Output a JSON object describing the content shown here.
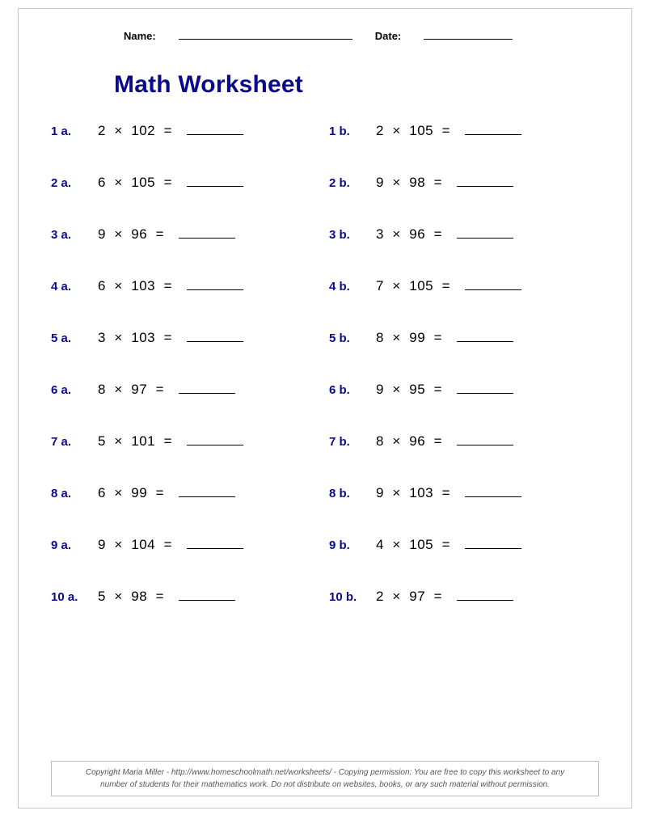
{
  "header": {
    "name_label": "Name:",
    "date_label": "Date:"
  },
  "title": "Math Worksheet",
  "colors": {
    "accent": "#0a0a8c",
    "text": "#000000",
    "border": "#c8c8c8",
    "footer_text": "#555555",
    "footer_border": "#bcbcbc",
    "background": "#ffffff"
  },
  "typography": {
    "title_fontsize": 30,
    "label_fontsize": 15,
    "expr_fontsize": 17,
    "header_fontsize": 13,
    "footer_fontsize": 10
  },
  "layout": {
    "columns": 2,
    "rows": 10,
    "row_gap": 44,
    "answer_blank_width": 70
  },
  "problems": {
    "left": [
      {
        "label": "1 a.",
        "a": 2,
        "b": 102
      },
      {
        "label": "2 a.",
        "a": 6,
        "b": 105
      },
      {
        "label": "3 a.",
        "a": 9,
        "b": 96
      },
      {
        "label": "4 a.",
        "a": 6,
        "b": 103
      },
      {
        "label": "5 a.",
        "a": 3,
        "b": 103
      },
      {
        "label": "6 a.",
        "a": 8,
        "b": 97
      },
      {
        "label": "7 a.",
        "a": 5,
        "b": 101
      },
      {
        "label": "8 a.",
        "a": 6,
        "b": 99
      },
      {
        "label": "9 a.",
        "a": 9,
        "b": 104
      },
      {
        "label": "10 a.",
        "a": 5,
        "b": 98
      }
    ],
    "right": [
      {
        "label": "1 b.",
        "a": 2,
        "b": 105
      },
      {
        "label": "2 b.",
        "a": 9,
        "b": 98
      },
      {
        "label": "3 b.",
        "a": 3,
        "b": 96
      },
      {
        "label": "4 b.",
        "a": 7,
        "b": 105
      },
      {
        "label": "5 b.",
        "a": 8,
        "b": 99
      },
      {
        "label": "6 b.",
        "a": 9,
        "b": 95
      },
      {
        "label": "7 b.",
        "a": 8,
        "b": 96
      },
      {
        "label": "8 b.",
        "a": 9,
        "b": 103
      },
      {
        "label": "9 b.",
        "a": 4,
        "b": 105
      },
      {
        "label": "10 b.",
        "a": 2,
        "b": 97
      }
    ]
  },
  "footer": {
    "line1": "Copyright Maria Miller - http://www.homeschoolmath.net/worksheets/ - Copying permission: You are free to copy this worksheet to any",
    "line2": "number of students for their mathematics work. Do not distribute on websites, books, or any such material without permission."
  }
}
